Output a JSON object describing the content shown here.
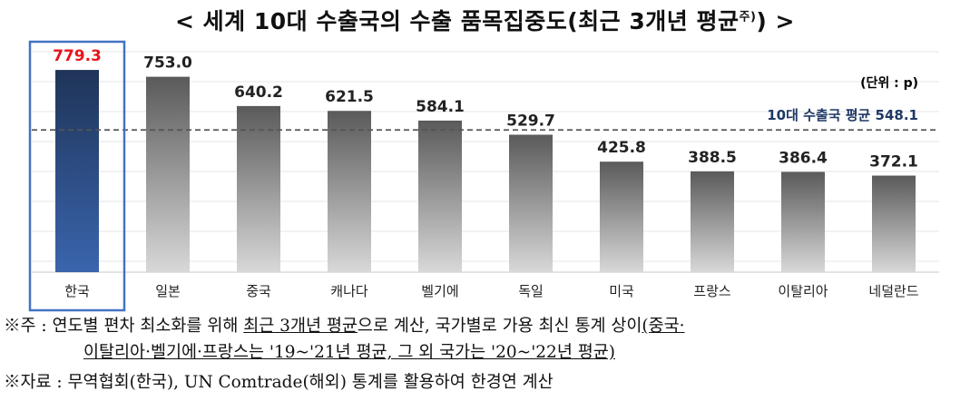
{
  "title": {
    "main": "< 세계 10대 수출국의 수출 품목집중도(최근 3개년 평균",
    "sup": "주)",
    "close": ")",
    "end": " >"
  },
  "chart_data": {
    "type": "bar",
    "categories": [
      "한국",
      "일본",
      "중국",
      "캐나다",
      "벨기에",
      "독일",
      "미국",
      "프랑스",
      "이탈리아",
      "네덜란드"
    ],
    "values": [
      779.3,
      753.0,
      640.2,
      621.5,
      584.1,
      529.7,
      425.8,
      388.5,
      386.4,
      372.1
    ],
    "value_labels": [
      "779.3",
      "753.0",
      "640.2",
      "621.5",
      "584.1",
      "529.7",
      "425.8",
      "388.5",
      "386.4",
      "372.1"
    ],
    "ylim": [
      0,
      860
    ],
    "unit_label": "(단위 : p)",
    "grid": true,
    "highlight_category": "한국",
    "average": {
      "label": "10대 수출국 평균 548.1",
      "value": 548.1
    },
    "colors": {
      "highlight_top": "#1f3458",
      "highlight_bottom": "#3a65ad",
      "bar_top": "#5a5a5a",
      "bar_bottom": "#d8d8d8",
      "highlight_value": "#e8141b",
      "highlight_box": "#4472c4",
      "average_line": "#555555",
      "average_text": "#1f3864"
    }
  },
  "notes": {
    "n1_prefix": "※주 : 연도별 편차 최소화를 위해 ",
    "n1_u1": "최근 3개년 평균",
    "n1_mid": "으로 계산, 국가별로 가용 최신 통계 상이",
    "n1_u2": "(중국·",
    "n2_u": "이탈리아·벨기에·프랑스는 '19~'21년 평균, 그 외 국가는 '20~'22년 평균)",
    "n3": "※자료 : 무역협회(한국), UN Comtrade(해외) 통계를 활용하여 한경연 계산"
  }
}
